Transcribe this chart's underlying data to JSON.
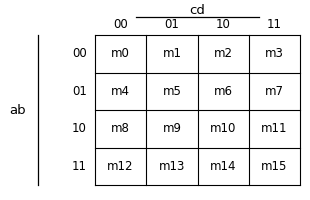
{
  "title_cd": "cd",
  "title_ab": "ab",
  "col_headers": [
    "00",
    "01",
    "10",
    "11"
  ],
  "row_headers": [
    "00",
    "01",
    "10",
    "11"
  ],
  "cells": [
    [
      "m0",
      "m1",
      "m2",
      "m3"
    ],
    [
      "m4",
      "m5",
      "m6",
      "m7"
    ],
    [
      "m8",
      "m9",
      "m10",
      "m11"
    ],
    [
      "m12",
      "m13",
      "m14",
      "m15"
    ]
  ],
  "bg_color": "#ffffff",
  "text_color": "#000000",
  "line_color": "#000000",
  "cell_font_size": 8.5,
  "header_font_size": 8.5,
  "label_font_size": 9.5
}
